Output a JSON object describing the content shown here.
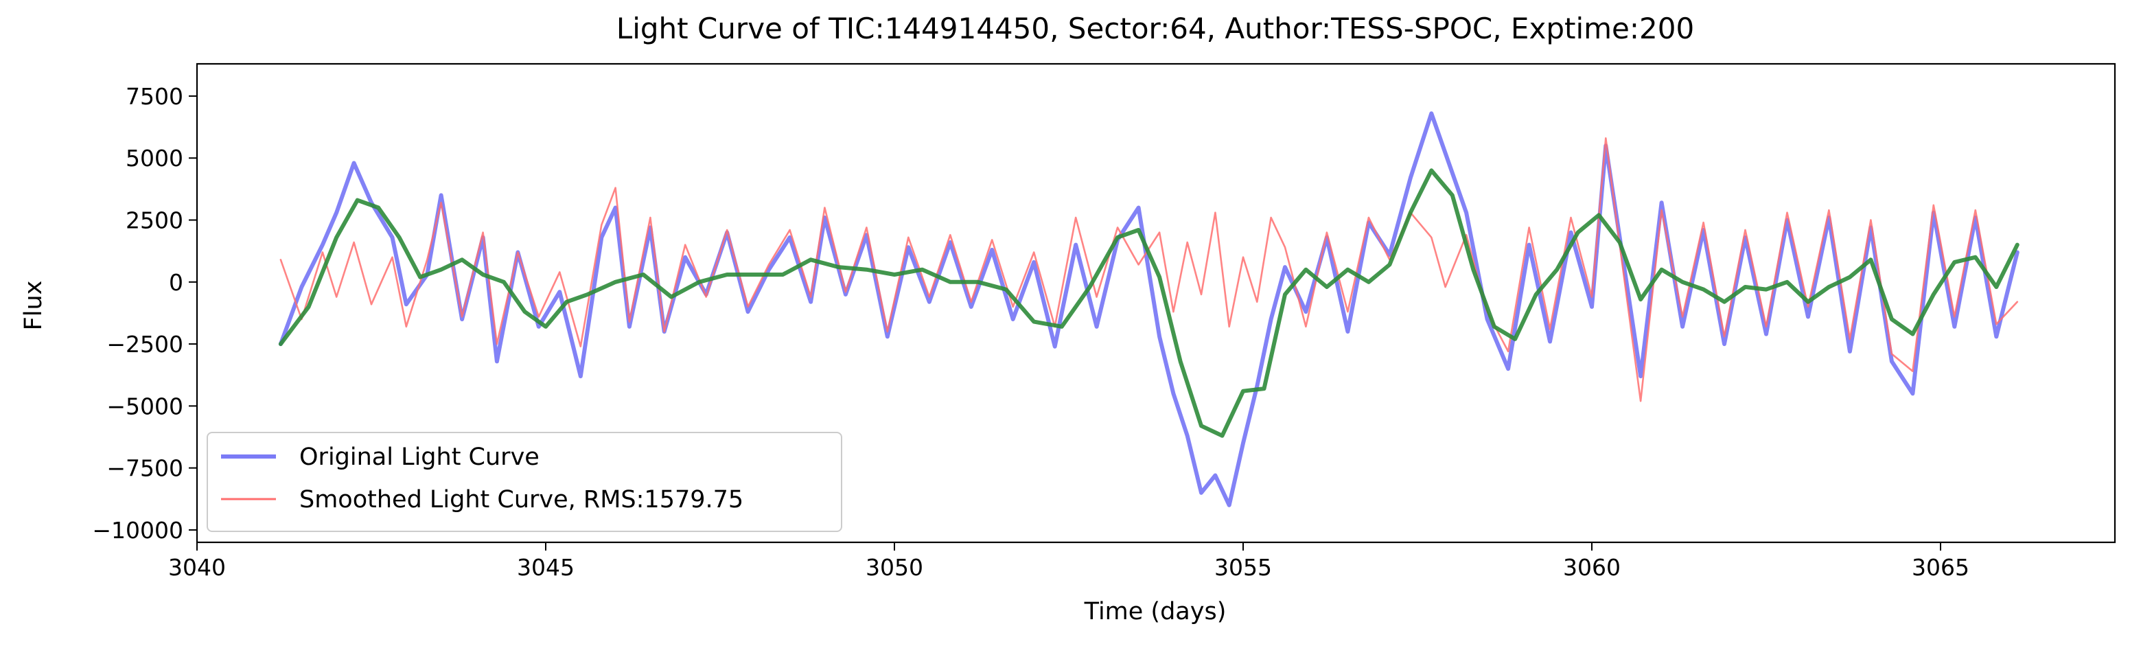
{
  "chart_data": {
    "type": "line",
    "title": "Light Curve of TIC:144914450, Sector:64, Author:TESS-SPOC, Exptime:200",
    "xlabel": "Time (days)",
    "ylabel": "Flux",
    "xlim": [
      3040,
      3067.5
    ],
    "ylim": [
      -10500,
      8800
    ],
    "xticks": [
      3040,
      3045,
      3050,
      3055,
      3060,
      3065
    ],
    "xtick_labels": [
      "3040",
      "3045",
      "3050",
      "3055",
      "3060",
      "3065"
    ],
    "yticks": [
      -10000,
      -7500,
      -5000,
      -2500,
      0,
      2500,
      5000,
      7500
    ],
    "ytick_labels": [
      "−10000",
      "−7500",
      "−5000",
      "−2500",
      "0",
      "2500",
      "5000",
      "7500"
    ],
    "grid": false,
    "legend": {
      "placement": "lower-left",
      "entries": [
        "Original Light Curve",
        "Smoothed Light Curve, RMS:1579.75"
      ]
    },
    "series": [
      {
        "name": "Original Light Curve",
        "color": "#7b7bf6",
        "x": [
          3041.2,
          3041.5,
          3041.8,
          3042.0,
          3042.25,
          3042.5,
          3042.8,
          3043.0,
          3043.3,
          3043.5,
          3043.8,
          3044.1,
          3044.3,
          3044.6,
          3044.9,
          3045.2,
          3045.5,
          3045.8,
          3046.0,
          3046.2,
          3046.5,
          3046.7,
          3047.0,
          3047.3,
          3047.6,
          3047.9,
          3048.2,
          3048.5,
          3048.8,
          3049.0,
          3049.3,
          3049.6,
          3049.9,
          3050.2,
          3050.5,
          3050.8,
          3051.1,
          3051.4,
          3051.7,
          3052.0,
          3052.3,
          3052.6,
          3052.9,
          3053.2,
          3053.5,
          3053.8,
          3054.0,
          3054.2,
          3054.4,
          3054.6,
          3054.8,
          3055.0,
          3055.2,
          3055.4,
          3055.6,
          3055.9,
          3056.2,
          3056.5,
          3056.8,
          3057.1,
          3057.4,
          3057.7,
          3057.9,
          3058.2,
          3058.5,
          3058.8,
          3059.1,
          3059.4,
          3059.7,
          3060.0,
          3060.2,
          3060.4,
          3060.7,
          3061.0,
          3061.3,
          3061.6,
          3061.9,
          3062.2,
          3062.5,
          3062.8,
          3063.1,
          3063.4,
          3063.7,
          3064.0,
          3064.3,
          3064.6,
          3064.9,
          3065.2,
          3065.5,
          3065.8,
          3066.1
        ],
        "y": [
          -2500,
          -200,
          1500,
          2800,
          4800,
          3200,
          1800,
          -900,
          300,
          3500,
          -1500,
          1800,
          -3200,
          1200,
          -1800,
          -400,
          -3800,
          1800,
          3000,
          -1800,
          2200,
          -2000,
          1000,
          -500,
          2000,
          -1200,
          500,
          1800,
          -800,
          2600,
          -500,
          1900,
          -2200,
          1400,
          -800,
          1600,
          -1000,
          1300,
          -1500,
          800,
          -2600,
          1500,
          -1800,
          1700,
          3000,
          -2200,
          -4500,
          -6200,
          -8500,
          -7800,
          -9000,
          -6500,
          -4200,
          -1500,
          600,
          -1200,
          1800,
          -2000,
          2400,
          1100,
          4200,
          6800,
          5200,
          2800,
          -1500,
          -3500,
          1500,
          -2400,
          2000,
          -1000,
          5500,
          1800,
          -3800,
          3200,
          -1800,
          2100,
          -2500,
          1800,
          -2100,
          2500,
          -1400,
          2600,
          -2800,
          2200,
          -3200,
          -4500,
          2800,
          -1800,
          2600,
          -2200,
          1200
        ]
      },
      {
        "name": "Smoothed Light Curve, RMS:1579.75",
        "color": "#ff6e6e",
        "x": [
          3041.2,
          3041.5,
          3041.8,
          3042.0,
          3042.25,
          3042.5,
          3042.8,
          3043.0,
          3043.3,
          3043.5,
          3043.8,
          3044.1,
          3044.3,
          3044.6,
          3044.9,
          3045.2,
          3045.5,
          3045.8,
          3046.0,
          3046.2,
          3046.5,
          3046.7,
          3047.0,
          3047.3,
          3047.6,
          3047.9,
          3048.2,
          3048.5,
          3048.8,
          3049.0,
          3049.3,
          3049.6,
          3049.9,
          3050.2,
          3050.5,
          3050.8,
          3051.1,
          3051.4,
          3051.7,
          3052.0,
          3052.3,
          3052.6,
          3052.9,
          3053.2,
          3053.5,
          3053.8,
          3054.0,
          3054.2,
          3054.4,
          3054.6,
          3054.8,
          3055.0,
          3055.2,
          3055.4,
          3055.6,
          3055.9,
          3056.2,
          3056.5,
          3056.8,
          3057.1,
          3057.4,
          3057.7,
          3057.9,
          3058.2,
          3058.5,
          3058.8,
          3059.1,
          3059.4,
          3059.7,
          3060.0,
          3060.2,
          3060.4,
          3060.7,
          3061.0,
          3061.3,
          3061.6,
          3061.9,
          3062.2,
          3062.5,
          3062.8,
          3063.1,
          3063.4,
          3063.7,
          3064.0,
          3064.3,
          3064.6,
          3064.9,
          3065.2,
          3065.5,
          3065.8,
          3066.1
        ],
        "y": [
          900,
          -1500,
          1200,
          -600,
          1600,
          -900,
          1000,
          -1800,
          900,
          3200,
          -1400,
          2000,
          -2500,
          1200,
          -1400,
          400,
          -2600,
          2300,
          3800,
          -1600,
          2600,
          -2000,
          1500,
          -600,
          2100,
          -1000,
          700,
          2100,
          -600,
          3000,
          -400,
          2200,
          -2000,
          1800,
          -600,
          1900,
          -800,
          1700,
          -1000,
          1200,
          -1800,
          2600,
          -600,
          2200,
          700,
          2000,
          -1200,
          1600,
          -500,
          2800,
          -1800,
          1000,
          -800,
          2600,
          1400,
          -1800,
          2000,
          -1200,
          2600,
          900,
          2800,
          1800,
          -200,
          1900,
          -1200,
          -2800,
          2200,
          -1900,
          2600,
          -600,
          5800,
          1500,
          -4800,
          2900,
          -1400,
          2400,
          -2200,
          2100,
          -1800,
          2800,
          -1000,
          2900,
          -2300,
          2500,
          -2900,
          -3600,
          3100,
          -1400,
          2900,
          -1700,
          -800
        ]
      },
      {
        "name": "",
        "color": "#2e8b3a",
        "x": [
          3041.2,
          3041.6,
          3042.0,
          3042.3,
          3042.6,
          3042.9,
          3043.2,
          3043.5,
          3043.8,
          3044.1,
          3044.4,
          3044.7,
          3045.0,
          3045.3,
          3045.6,
          3046.0,
          3046.4,
          3046.8,
          3047.2,
          3047.6,
          3048.0,
          3048.4,
          3048.8,
          3049.2,
          3049.6,
          3050.0,
          3050.4,
          3050.8,
          3051.2,
          3051.6,
          3052.0,
          3052.4,
          3052.8,
          3053.2,
          3053.5,
          3053.8,
          3054.1,
          3054.4,
          3054.7,
          3055.0,
          3055.3,
          3055.6,
          3055.9,
          3056.2,
          3056.5,
          3056.8,
          3057.1,
          3057.4,
          3057.7,
          3058.0,
          3058.3,
          3058.6,
          3058.9,
          3059.2,
          3059.5,
          3059.8,
          3060.1,
          3060.4,
          3060.7,
          3061.0,
          3061.3,
          3061.6,
          3061.9,
          3062.2,
          3062.5,
          3062.8,
          3063.1,
          3063.4,
          3063.7,
          3064.0,
          3064.3,
          3064.6,
          3064.9,
          3065.2,
          3065.5,
          3065.8,
          3066.1
        ],
        "y": [
          -2500,
          -1000,
          1800,
          3300,
          3000,
          1800,
          200,
          500,
          900,
          300,
          0,
          -1200,
          -1800,
          -800,
          -500,
          0,
          300,
          -600,
          0,
          300,
          300,
          300,
          900,
          600,
          500,
          300,
          500,
          0,
          0,
          -300,
          -1600,
          -1800,
          -200,
          1800,
          2100,
          200,
          -3200,
          -5800,
          -6200,
          -4400,
          -4300,
          -500,
          500,
          -200,
          500,
          0,
          700,
          2800,
          4500,
          3500,
          500,
          -1800,
          -2300,
          -500,
          500,
          2000,
          2700,
          1600,
          -700,
          500,
          0,
          -300,
          -800,
          -200,
          -300,
          0,
          -800,
          -200,
          200,
          900,
          -1500,
          -2100,
          -500,
          800,
          1000,
          -200,
          1500
        ]
      }
    ]
  }
}
